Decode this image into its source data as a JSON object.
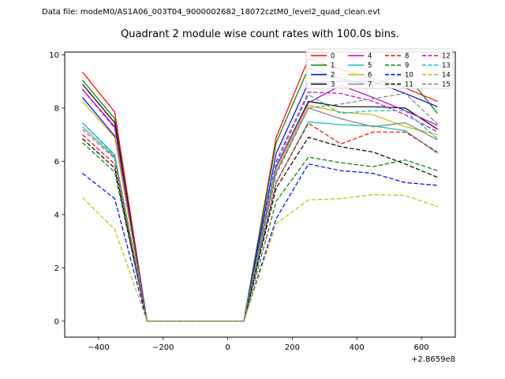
{
  "figure": {
    "data_file_text": "Data file: modeM0/AS1A06_003T04_9000002682_18072cztM0_level2_quad_clean.evt",
    "offset_label": "+2.8659e8"
  },
  "chart_data": {
    "type": "line",
    "title": "Quadrant 2 module wise count rates with 100.0s bins.",
    "xlabel": "",
    "ylabel": "",
    "x_axis_offset": "+2.8659e8",
    "x_offset_value": 286590000,
    "bin_size_seconds": 100.0,
    "xlim": [
      -505,
      705
    ],
    "ylim": [
      -0.6,
      10.1
    ],
    "xticks": [
      -400,
      -200,
      0,
      200,
      400,
      600
    ],
    "yticks": [
      0,
      2,
      4,
      6,
      8,
      10
    ],
    "grid": false,
    "legend_position": "upper right",
    "legend_columns": 4,
    "x": [
      -450,
      -350,
      -250,
      -150,
      -50,
      50,
      150,
      250,
      350,
      450,
      550,
      650
    ],
    "series": [
      {
        "name": "0",
        "color": "#ff0000",
        "linestyle": "solid",
        "values": [
          9.35,
          7.85,
          0,
          0,
          0,
          0,
          6.9,
          9.85,
          9.45,
          9.1,
          8.75,
          8.25
        ]
      },
      {
        "name": "1",
        "color": "#008000",
        "linestyle": "solid",
        "values": [
          9.05,
          7.6,
          0,
          0,
          0,
          0,
          6.7,
          9.5,
          9.1,
          8.85,
          9.3,
          7.8
        ]
      },
      {
        "name": "2",
        "color": "#0000ff",
        "linestyle": "solid",
        "values": [
          8.4,
          6.95,
          0,
          0,
          0,
          0,
          6.3,
          8.95,
          9.0,
          9.0,
          8.55,
          8.05
        ]
      },
      {
        "name": "3",
        "color": "#000000",
        "linestyle": "solid",
        "values": [
          8.9,
          7.45,
          0,
          0,
          0,
          0,
          5.8,
          8.25,
          8.05,
          8.05,
          8.0,
          7.2
        ]
      },
      {
        "name": "4",
        "color": "#bf00bf",
        "linestyle": "solid",
        "values": [
          8.7,
          7.3,
          0,
          0,
          0,
          0,
          5.8,
          8.2,
          8.85,
          8.4,
          7.9,
          7.35
        ]
      },
      {
        "name": "5",
        "color": "#00bfbf",
        "linestyle": "solid",
        "values": [
          7.45,
          6.25,
          0,
          0,
          0,
          0,
          5.2,
          7.48,
          7.38,
          7.33,
          7.15,
          6.3
        ]
      },
      {
        "name": "6",
        "color": "#bfbf00",
        "linestyle": "solid",
        "values": [
          8.25,
          6.9,
          0,
          0,
          0,
          0,
          5.7,
          8.1,
          7.85,
          7.75,
          7.3,
          7.0
        ]
      },
      {
        "name": "7",
        "color": "#808080",
        "linestyle": "solid",
        "values": [
          7.3,
          6.15,
          0,
          0,
          0,
          0,
          5.6,
          8.0,
          7.6,
          7.3,
          7.45,
          6.8
        ]
      },
      {
        "name": "8",
        "color": "#ff0000",
        "linestyle": "dashed",
        "values": [
          7.0,
          5.9,
          0,
          0,
          0,
          0,
          5.2,
          7.43,
          6.65,
          7.1,
          7.1,
          6.35
        ]
      },
      {
        "name": "9",
        "color": "#008000",
        "linestyle": "dashed",
        "values": [
          6.7,
          5.6,
          0,
          0,
          0,
          0,
          4.5,
          6.16,
          5.95,
          5.8,
          6.05,
          5.65
        ]
      },
      {
        "name": "10",
        "color": "#0000ff",
        "linestyle": "dashed",
        "values": [
          5.55,
          4.6,
          0,
          0,
          0,
          0,
          3.85,
          5.9,
          5.65,
          5.55,
          5.2,
          5.1
        ]
      },
      {
        "name": "11",
        "color": "#000000",
        "linestyle": "dashed",
        "values": [
          6.85,
          5.75,
          0,
          0,
          0,
          0,
          5.0,
          6.9,
          6.55,
          6.35,
          5.9,
          5.4
        ]
      },
      {
        "name": "12",
        "color": "#bf00bf",
        "linestyle": "dashed",
        "values": [
          8.7,
          7.25,
          0,
          0,
          0,
          0,
          6.0,
          8.6,
          8.55,
          8.25,
          7.75,
          7.1
        ]
      },
      {
        "name": "13",
        "color": "#00bfbf",
        "linestyle": "dashed",
        "values": [
          7.45,
          6.2,
          0,
          0,
          0,
          0,
          5.9,
          8.5,
          7.8,
          7.9,
          7.9,
          6.85
        ]
      },
      {
        "name": "14",
        "color": "#bfbf00",
        "linestyle": "dashed",
        "values": [
          4.63,
          3.45,
          0,
          0,
          0,
          0,
          3.66,
          4.55,
          4.6,
          4.75,
          4.72,
          4.3
        ]
      },
      {
        "name": "15",
        "color": "#808080",
        "linestyle": "dashed",
        "values": [
          7.2,
          6.1,
          0,
          0,
          0,
          0,
          5.5,
          8.0,
          8.15,
          8.35,
          8.55,
          7.4
        ]
      }
    ]
  }
}
